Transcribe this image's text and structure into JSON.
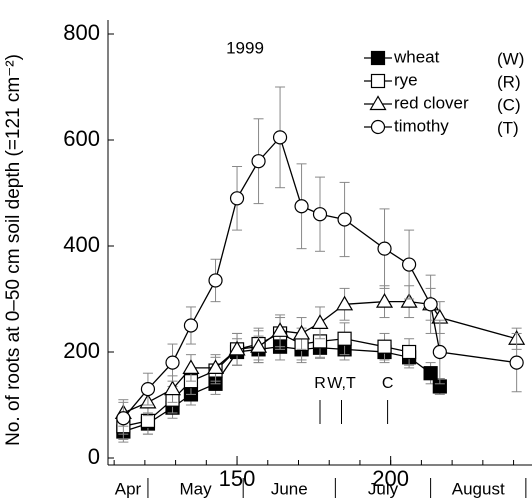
{
  "chart_data": {
    "type": "line",
    "title": "1999",
    "y_label": "No. of roots at 0–50 cm soil depth (=121 cm⁻²)",
    "xlim": [
      108,
      246
    ],
    "xticks": [
      150,
      200
    ],
    "x_minor_ticks": [
      110,
      120,
      130,
      140,
      150,
      160,
      170,
      180,
      190,
      200,
      210,
      220,
      230,
      240
    ],
    "ylim": [
      0,
      800
    ],
    "yticks": [
      0,
      200,
      400,
      600,
      800
    ],
    "months": [
      {
        "label": "Apr",
        "start": 108
      },
      {
        "label": "May",
        "start": 121
      },
      {
        "label": "June",
        "start": 152
      },
      {
        "label": "July",
        "start": 182
      },
      {
        "label": "August",
        "start": 213
      },
      {
        "label": null,
        "start": 244
      }
    ],
    "harvest": [
      {
        "label": "R",
        "day": 177
      },
      {
        "label": "W,T",
        "day": 184
      },
      {
        "label": "C",
        "day": 199
      }
    ],
    "series": [
      {
        "name": "wheat",
        "code": "(W)",
        "marker": "square-filled",
        "color": "#000000",
        "x": [
          113,
          121,
          129,
          135,
          143,
          150,
          157,
          164,
          171,
          177,
          185,
          198,
          206,
          213,
          216
        ],
        "values": [
          50,
          65,
          95,
          120,
          140,
          200,
          205,
          210,
          205,
          208,
          205,
          200,
          190,
          160,
          135
        ],
        "errors": [
          20,
          20,
          20,
          20,
          20,
          25,
          25,
          25,
          25,
          20,
          20,
          20,
          20,
          20,
          15
        ]
      },
      {
        "name": "rye",
        "code": "(R)",
        "marker": "square-open",
        "color": "#000000",
        "x": [
          113,
          121,
          129,
          135,
          143,
          150,
          157,
          164,
          171,
          177,
          185,
          198,
          206
        ],
        "values": [
          60,
          70,
          110,
          145,
          165,
          205,
          215,
          235,
          215,
          220,
          225,
          210,
          200
        ],
        "errors": [
          25,
          25,
          25,
          25,
          25,
          30,
          30,
          30,
          30,
          30,
          30,
          25,
          25
        ]
      },
      {
        "name": "red clover",
        "code": "(C)",
        "marker": "triangle-open",
        "color": "#000000",
        "x": [
          113,
          121,
          129,
          135,
          143,
          150,
          157,
          164,
          171,
          177,
          185,
          198,
          206,
          213,
          216,
          241
        ],
        "values": [
          85,
          105,
          130,
          170,
          170,
          205,
          210,
          240,
          235,
          255,
          290,
          295,
          295,
          290,
          265,
          225
        ],
        "errors": [
          25,
          25,
          25,
          25,
          25,
          30,
          30,
          30,
          30,
          30,
          30,
          30,
          30,
          30,
          30,
          20
        ]
      },
      {
        "name": "timothy",
        "code": "(T)",
        "marker": "circle-open",
        "color": "#000000",
        "x": [
          113,
          121,
          129,
          135,
          143,
          150,
          157,
          164,
          171,
          177,
          185,
          198,
          206,
          213,
          216,
          241
        ],
        "values": [
          75,
          130,
          180,
          250,
          335,
          490,
          560,
          605,
          475,
          460,
          450,
          395,
          365,
          290,
          200,
          180
        ],
        "errors": [
          30,
          30,
          35,
          35,
          40,
          60,
          80,
          95,
          80,
          70,
          70,
          75,
          65,
          55,
          60,
          55
        ]
      }
    ]
  }
}
